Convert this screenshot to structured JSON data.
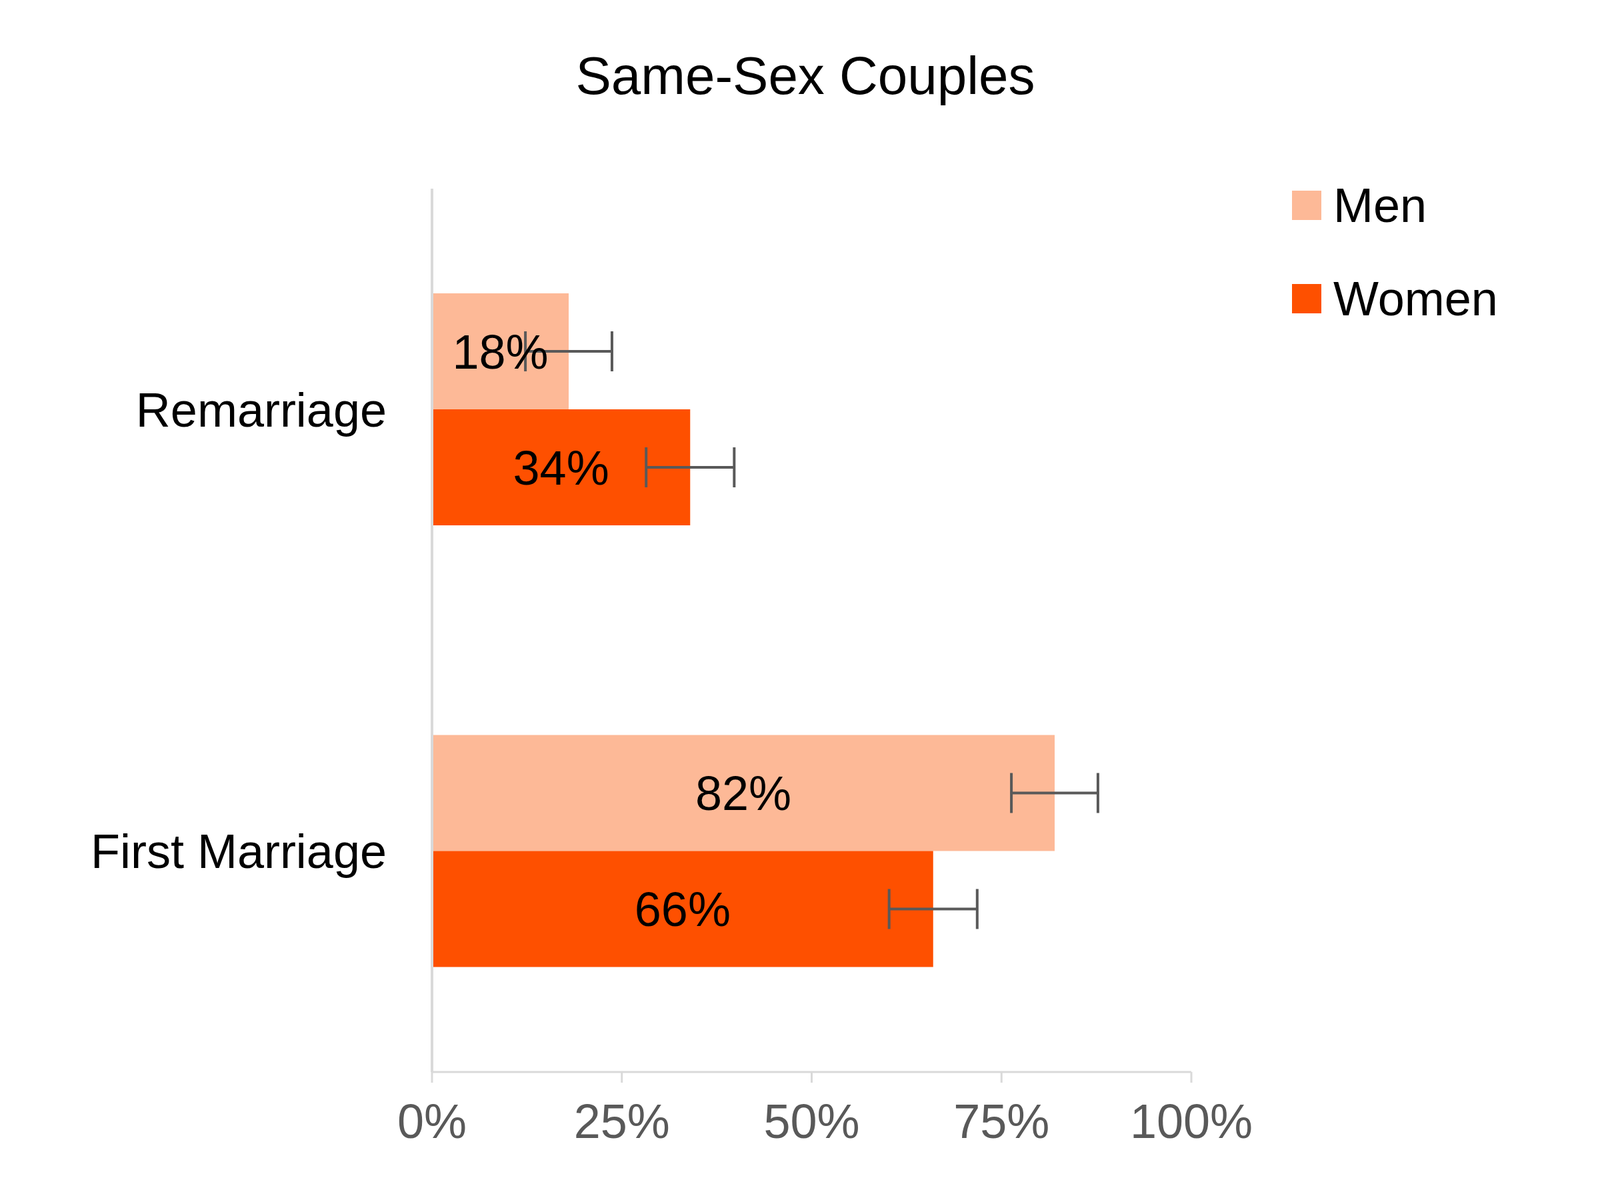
{
  "chart_data": {
    "type": "bar",
    "title": "Same-Sex Couples",
    "orientation": "horizontal",
    "categories": [
      "Remarriage",
      "First Marriage"
    ],
    "series": [
      {
        "name": "Men",
        "color": "#FDB997",
        "values": [
          18,
          82
        ],
        "value_labels": [
          "18%",
          "82%"
        ],
        "errors": [
          5.7,
          5.7
        ]
      },
      {
        "name": "Women",
        "color": "#FE5000",
        "values": [
          34,
          66
        ],
        "value_labels": [
          "34%",
          "66%"
        ],
        "errors": [
          5.8,
          5.8
        ]
      }
    ],
    "xlim": [
      0,
      100
    ],
    "xticks": [
      {
        "value": 0,
        "label": "0%"
      },
      {
        "value": 25,
        "label": "25%"
      },
      {
        "value": 50,
        "label": "50%"
      },
      {
        "value": 75,
        "label": "75%"
      },
      {
        "value": 100,
        "label": "100%"
      }
    ],
    "data_labels": true,
    "legend": "upper right",
    "grid": false
  }
}
